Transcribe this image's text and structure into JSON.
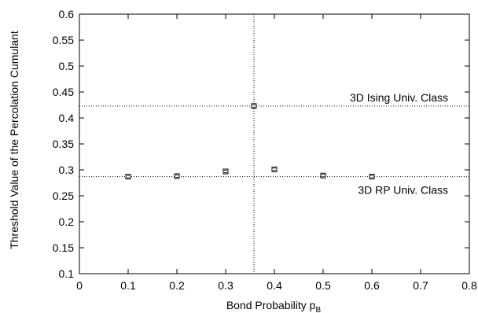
{
  "chart_data": {
    "type": "scatter",
    "title": "",
    "xlabel": "Bond Probability p",
    "xlabel_sub": "B",
    "ylabel": "Threshold Value of the Percolation Cumulant",
    "xlim": [
      0,
      0.8
    ],
    "ylim": [
      0.1,
      0.6
    ],
    "xticks": [
      0,
      0.1,
      0.2,
      0.3,
      0.4,
      0.5,
      0.6,
      0.7,
      0.8
    ],
    "xtick_labels": [
      "0",
      "0.1",
      "0.2",
      "0.3",
      "0.4",
      "0.5",
      "0.6",
      "0.7",
      "0.8"
    ],
    "yticks": [
      0.1,
      0.15,
      0.2,
      0.25,
      0.3,
      0.35,
      0.4,
      0.45,
      0.5,
      0.55,
      0.6
    ],
    "ytick_labels": [
      "0.1",
      "0.15",
      "0.2",
      "0.25",
      "0.3",
      "0.35",
      "0.4",
      "0.45",
      "0.5",
      "0.55",
      "0.6"
    ],
    "grid": false,
    "series": [
      {
        "marker": "open-square",
        "x": [
          0.1,
          0.2,
          0.3,
          0.358,
          0.4,
          0.5,
          0.6
        ],
        "y": [
          0.287,
          0.288,
          0.297,
          0.423,
          0.301,
          0.289,
          0.287
        ]
      }
    ],
    "reference_lines": [
      {
        "orientation": "horizontal",
        "value": 0.423,
        "style": "dotted",
        "label": "3D Ising Univ. Class",
        "label_position": "above"
      },
      {
        "orientation": "horizontal",
        "value": 0.287,
        "style": "dotted",
        "label": "3D RP Univ. Class",
        "label_position": "below"
      },
      {
        "orientation": "vertical",
        "value": 0.358,
        "style": "dotted",
        "label": ""
      }
    ]
  }
}
